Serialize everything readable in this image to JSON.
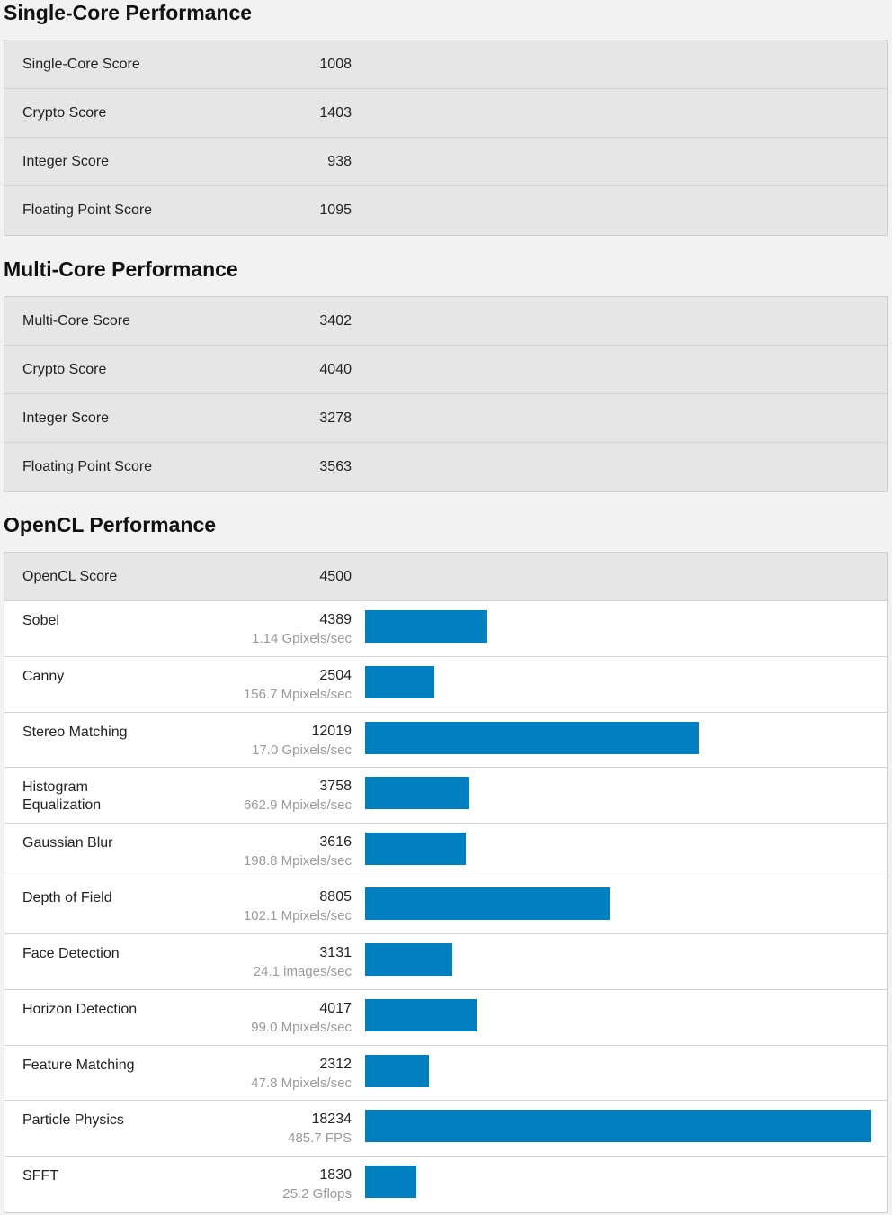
{
  "single_core": {
    "title": "Single-Core Performance",
    "rows": [
      {
        "label": "Single-Core Score",
        "value": "1008"
      },
      {
        "label": "Crypto Score",
        "value": "1403"
      },
      {
        "label": "Integer Score",
        "value": "938"
      },
      {
        "label": "Floating Point Score",
        "value": "1095"
      }
    ]
  },
  "multi_core": {
    "title": "Multi-Core Performance",
    "rows": [
      {
        "label": "Multi-Core Score",
        "value": "3402"
      },
      {
        "label": "Crypto Score",
        "value": "4040"
      },
      {
        "label": "Integer Score",
        "value": "3278"
      },
      {
        "label": "Floating Point Score",
        "value": "3563"
      }
    ]
  },
  "opencl": {
    "title": "OpenCL Performance",
    "score_label": "OpenCL Score",
    "score_value": "4500",
    "bar_color": "#0080c0",
    "benchmarks": [
      {
        "label": "Sobel",
        "score": 4389,
        "rate": "1.14 Gpixels/sec"
      },
      {
        "label": "Canny",
        "score": 2504,
        "rate": "156.7 Mpixels/sec"
      },
      {
        "label": "Stereo Matching",
        "score": 12019,
        "rate": "17.0 Gpixels/sec"
      },
      {
        "label": "Histogram Equalization",
        "score": 3758,
        "rate": "662.9 Mpixels/sec"
      },
      {
        "label": "Gaussian Blur",
        "score": 3616,
        "rate": "198.8 Mpixels/sec"
      },
      {
        "label": "Depth of Field",
        "score": 8805,
        "rate": "102.1 Mpixels/sec"
      },
      {
        "label": "Face Detection",
        "score": 3131,
        "rate": "24.1 images/sec"
      },
      {
        "label": "Horizon Detection",
        "score": 4017,
        "rate": "99.0 Mpixels/sec"
      },
      {
        "label": "Feature Matching",
        "score": 2312,
        "rate": "47.8 Mpixels/sec"
      },
      {
        "label": "Particle Physics",
        "score": 18234,
        "rate": "485.7 FPS"
      },
      {
        "label": "SFFT",
        "score": 1830,
        "rate": "25.2 Gflops"
      }
    ]
  }
}
